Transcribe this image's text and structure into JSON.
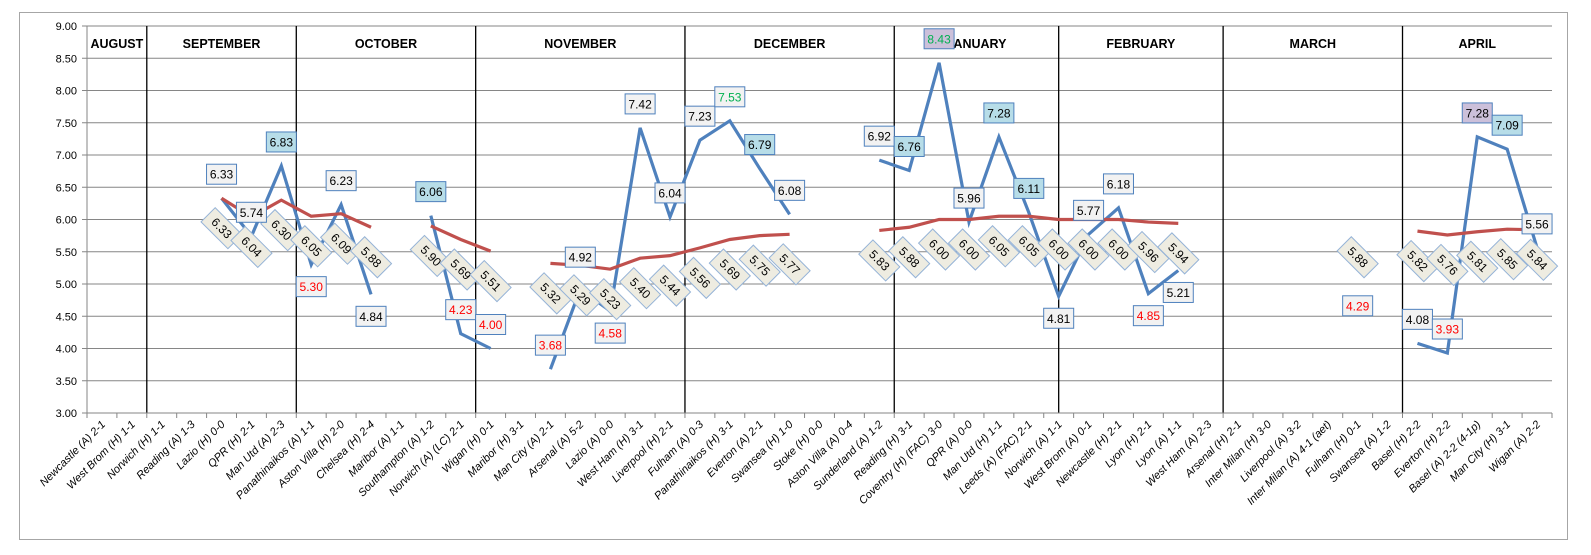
{
  "chart_data": {
    "type": "line",
    "title": "",
    "xlabel": "",
    "ylabel": "",
    "ylim": [
      3.0,
      9.0
    ],
    "ystep": 0.5,
    "grid": true,
    "legend": "none",
    "categories": [
      "Newcastle (A) 2-1",
      "West Brom (H) 1-1",
      "Norwich (H) 1-1",
      "Reading (A) 1-3",
      "Lazio (H) 0-0",
      "QPR (H) 2-1",
      "Man Utd (A) 2-3",
      "Panathinaikos (A) 1-1",
      "Aston Villa (H) 2-0",
      "Chelsea (H) 2-4",
      "Maribor (A) 1-1",
      "Southampton (A) 1-2",
      "Norwich (A) (LC) 2-1",
      "Wigan (H) 0-1",
      "Maribor (H) 3-1",
      "Man City (A) 2-1",
      "Arsenal (A) 5-2",
      "Lazio (A) 0-0",
      "West Ham (H) 3-1",
      "Liverpool (H) 2-1",
      "Fulham (A) 0-3",
      "Panathinaikos (H) 3-1",
      "Everton (A) 2-1",
      "Swansea (H) 1-0",
      "Stoke (H) 0-0",
      "Aston Villa (A) 0-4",
      "Sunderland (A) 1-2",
      "Reading (H) 3-1",
      "Coventry (H) (FAC) 3-0",
      "QPR (A) 0-0",
      "Man Utd (H) 1-1",
      "Leeds (A) (FAC) 2-1",
      "Norwich (A) 1-1",
      "West Brom (A) 0-1",
      "Newcastle (H) 2-1",
      "Lyon (H) 2-1",
      "Lyon (A) 1-1",
      "West Ham (A) 2-3",
      "Arsenal (H) 2-1",
      "Inter Milan (H) 3-0",
      "Liverpool (A) 3-2",
      "Inter Milan (A) 4-1 (aet)",
      "Fulham (H) 0-1",
      "Swansea (A) 1-2",
      "Basel (H) 2-2",
      "Everton (H) 2-2",
      "Basel (A) 2-2 (4-1p)",
      "Man City (H) 3-1",
      "Wigan (A) 2-2"
    ],
    "months": [
      {
        "name": "AUGUST",
        "from": 0,
        "to": 2
      },
      {
        "name": "SEPTEMBER",
        "from": 2,
        "to": 7
      },
      {
        "name": "OCTOBER",
        "from": 7,
        "to": 13
      },
      {
        "name": "NOVEMBER",
        "from": 13,
        "to": 20
      },
      {
        "name": "DECEMBER",
        "from": 20,
        "to": 27
      },
      {
        "name": "JANUARY",
        "from": 27,
        "to": 32.5
      },
      {
        "name": "FEBRUARY",
        "from": 32.5,
        "to": 38
      },
      {
        "name": "MARCH",
        "from": 38,
        "to": 44
      },
      {
        "name": "APRIL",
        "from": 44,
        "to": 49
      }
    ],
    "series": [
      {
        "key": "rating",
        "color": "#4f81bd",
        "values": [
          null,
          null,
          null,
          null,
          6.33,
          5.74,
          6.83,
          5.3,
          6.23,
          4.84,
          null,
          6.06,
          4.23,
          4.0,
          null,
          3.68,
          4.92,
          4.58,
          7.42,
          6.04,
          7.23,
          7.53,
          6.79,
          6.08,
          null,
          null,
          6.92,
          6.76,
          8.43,
          5.96,
          7.28,
          6.11,
          4.81,
          5.77,
          6.18,
          4.85,
          5.21,
          null,
          null,
          null,
          null,
          null,
          4.29,
          null,
          4.08,
          3.93,
          7.28,
          7.09,
          5.56
        ]
      },
      {
        "key": "average",
        "color": "#c0504d",
        "values": [
          null,
          null,
          null,
          null,
          6.33,
          6.04,
          6.3,
          6.05,
          6.09,
          5.88,
          null,
          5.9,
          5.69,
          5.51,
          null,
          5.32,
          5.29,
          5.23,
          5.4,
          5.44,
          5.56,
          5.69,
          5.75,
          5.77,
          null,
          null,
          5.83,
          5.88,
          6.0,
          6.0,
          6.05,
          6.05,
          6.0,
          6.0,
          6.0,
          5.96,
          5.94,
          null,
          null,
          null,
          null,
          null,
          5.88,
          null,
          5.82,
          5.76,
          5.81,
          5.85,
          5.84
        ]
      }
    ],
    "rating_label_highlight": {
      "blue_fill": [
        7,
        12,
        23,
        28,
        31,
        32,
        48
      ],
      "purple_fill": [
        29,
        47
      ],
      "red_text": [
        8,
        13,
        14,
        16,
        18,
        36,
        43,
        46
      ],
      "green_text": [
        22,
        29
      ]
    },
    "colors": {
      "label_default_fill": "#f2f2f2",
      "label_blue_fill": "#b7dde8",
      "label_purple_fill": "#ccc0da",
      "label_border": "#4f81bd",
      "diamond_fill": "#eeece1",
      "diamond_border": "#95b3d7",
      "red_text": "#ff0000",
      "green_text": "#00b050",
      "grid": "#868686"
    }
  }
}
